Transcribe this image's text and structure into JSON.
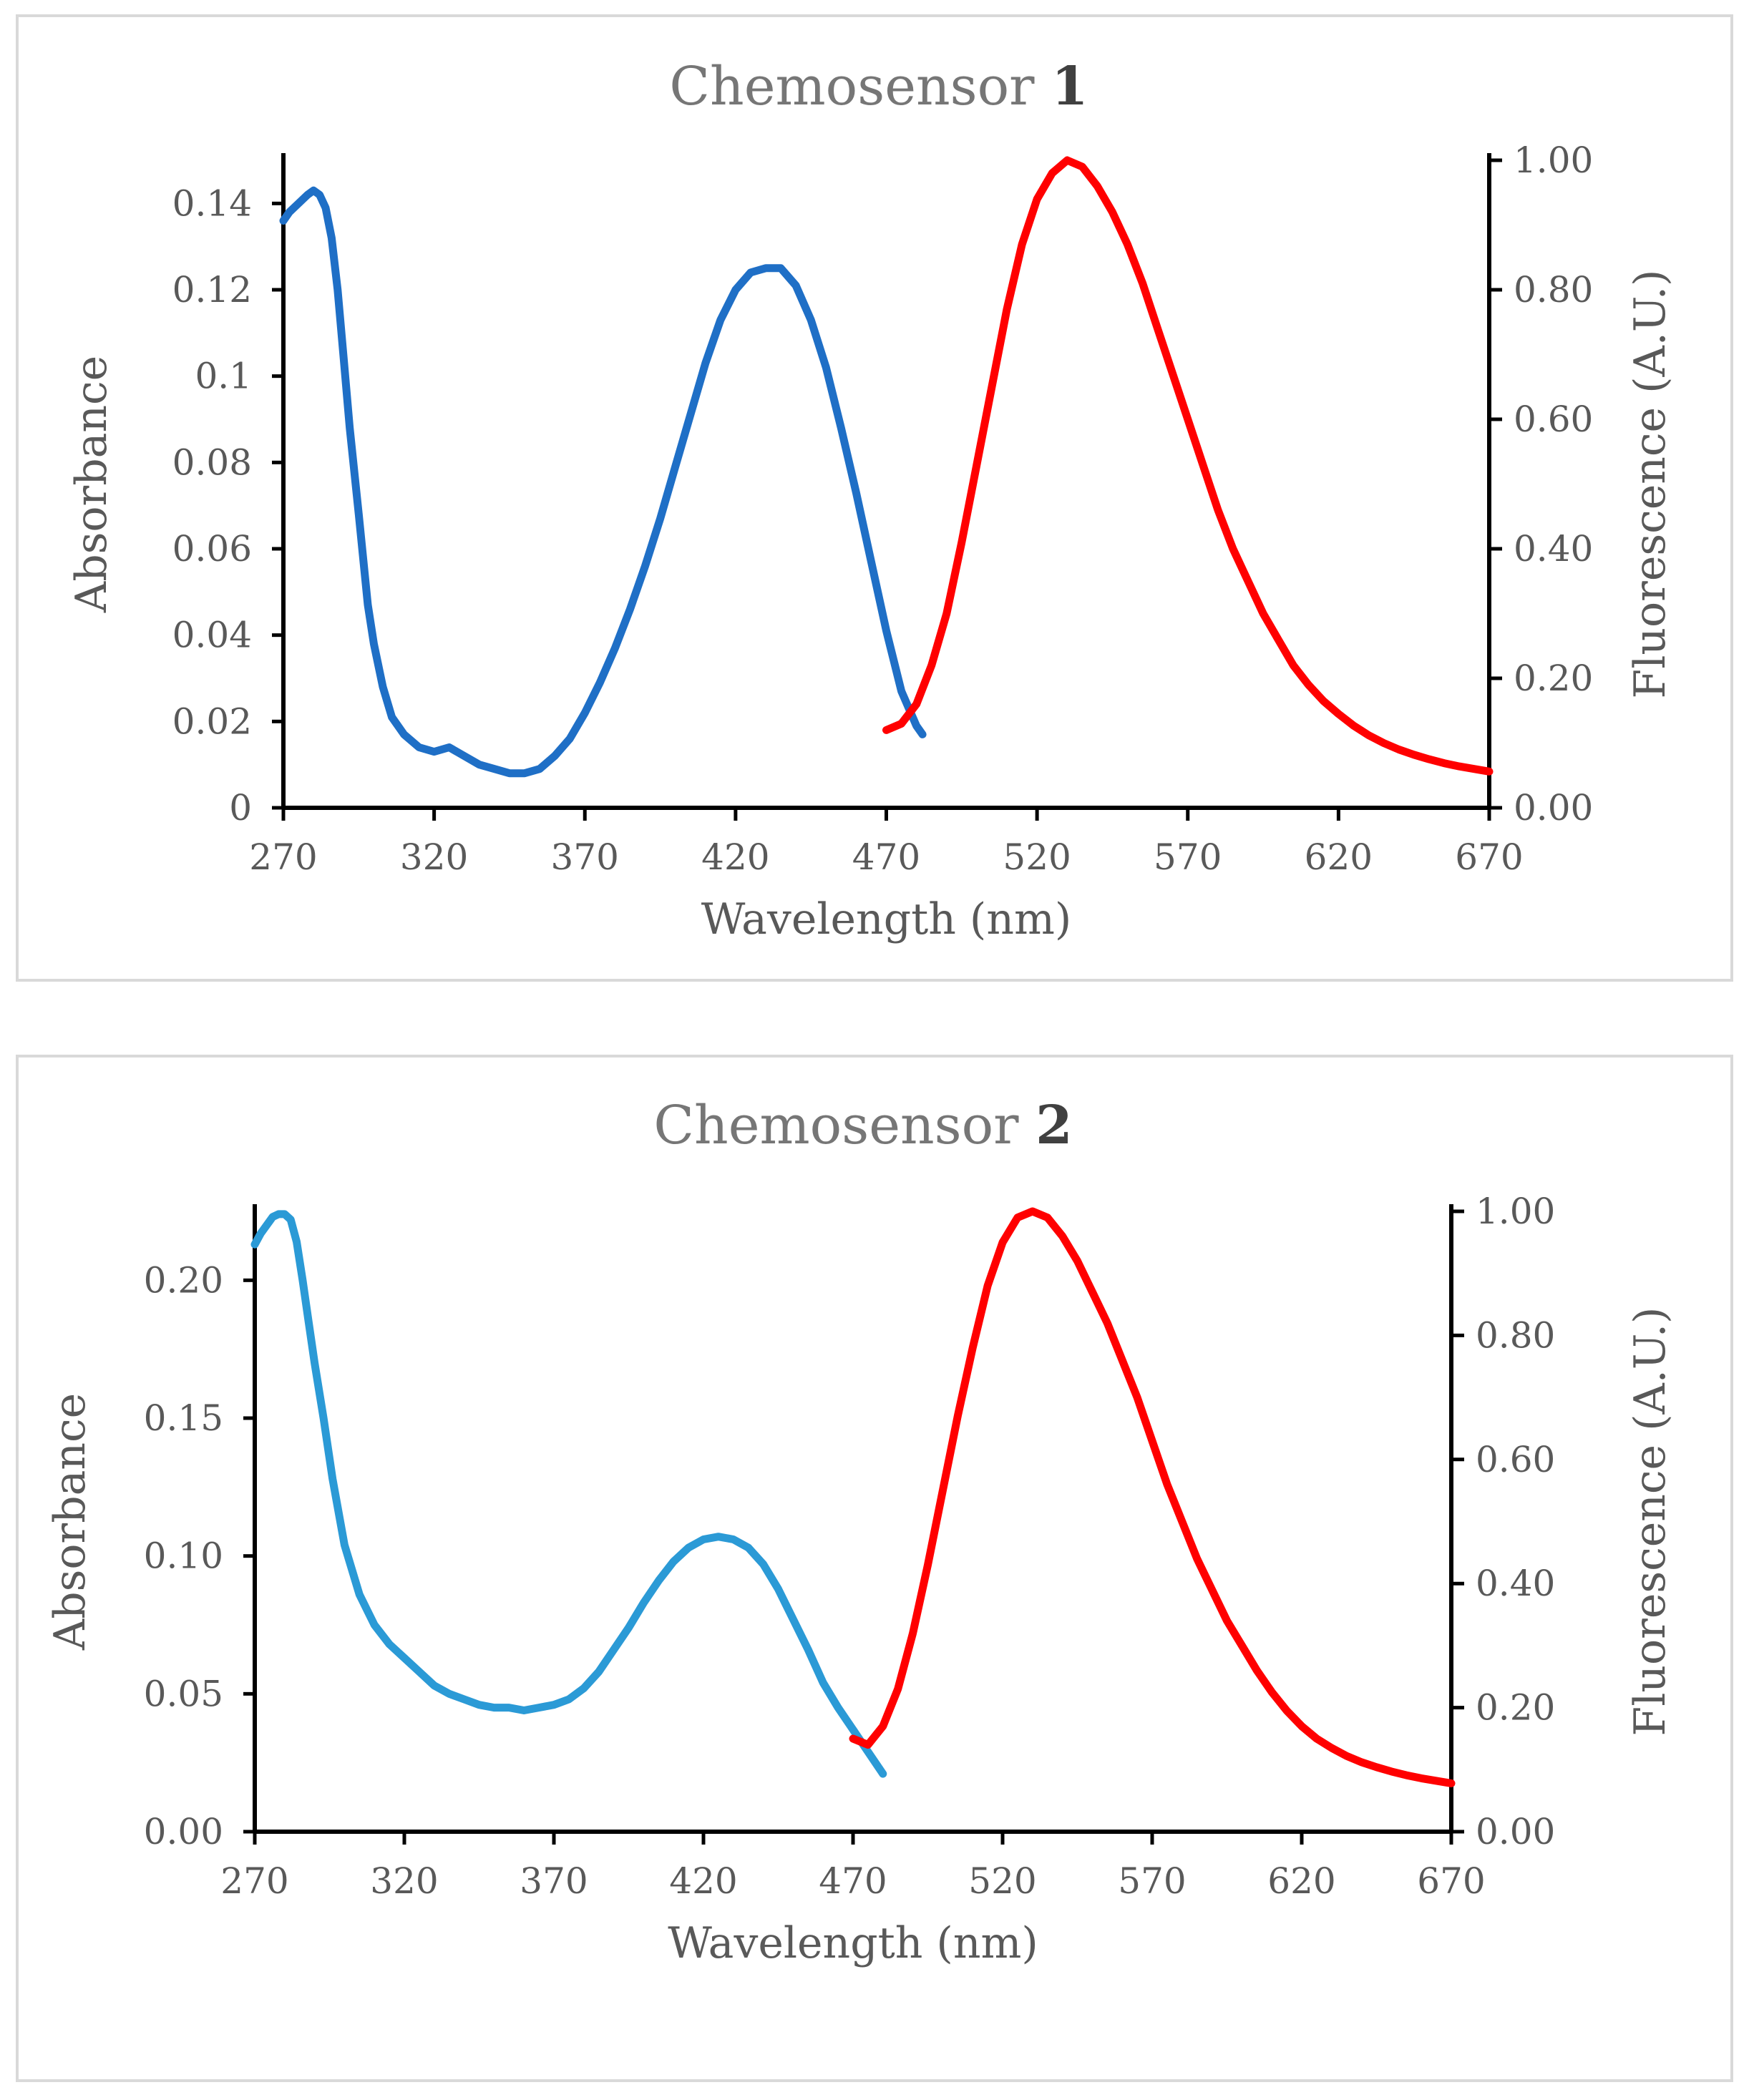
{
  "chart_data": [
    {
      "type": "line",
      "title": "Chemosensor",
      "title_number": "1",
      "xlabel": "Wavelength  (nm)",
      "ylabel": "Absorbance",
      "y2label": "Fluorescence  (A.U.)",
      "xlim": [
        270,
        670
      ],
      "ylim": [
        0,
        0.15
      ],
      "y2lim": [
        0,
        1.0
      ],
      "xticks": [
        "270",
        "320",
        "370",
        "420",
        "470",
        "520",
        "570",
        "620",
        "670"
      ],
      "yticks": [
        "0",
        "0.02",
        "0.04",
        "0.06",
        "0.08",
        "0.1",
        "0.12",
        "0.14"
      ],
      "y2ticks": [
        "0.00",
        "0.20",
        "0.40",
        "0.60",
        "0.80",
        "1.00"
      ],
      "grid": false,
      "series": [
        {
          "name": "Absorbance",
          "axis": "left",
          "color": "#1f6fc6",
          "x": [
            270,
            272,
            275,
            278,
            280,
            282,
            284,
            286,
            288,
            290,
            292,
            295,
            298,
            300,
            303,
            306,
            310,
            315,
            320,
            325,
            330,
            335,
            340,
            345,
            350,
            355,
            360,
            365,
            370,
            375,
            380,
            385,
            390,
            395,
            400,
            405,
            410,
            415,
            420,
            425,
            430,
            435,
            440,
            445,
            450,
            455,
            460,
            465,
            470,
            475,
            480,
            482
          ],
          "values": [
            0.136,
            0.138,
            0.14,
            0.142,
            0.143,
            0.142,
            0.139,
            0.132,
            0.12,
            0.104,
            0.088,
            0.068,
            0.047,
            0.038,
            0.028,
            0.021,
            0.017,
            0.014,
            0.013,
            0.014,
            0.012,
            0.01,
            0.009,
            0.008,
            0.008,
            0.009,
            0.012,
            0.016,
            0.022,
            0.029,
            0.037,
            0.046,
            0.056,
            0.067,
            0.079,
            0.091,
            0.103,
            0.113,
            0.12,
            0.124,
            0.125,
            0.125,
            0.121,
            0.113,
            0.102,
            0.088,
            0.073,
            0.057,
            0.041,
            0.027,
            0.019,
            0.017
          ]
        },
        {
          "name": "Fluorescence",
          "axis": "right",
          "color": "#ff0000",
          "x": [
            470,
            475,
            480,
            485,
            490,
            495,
            500,
            505,
            510,
            515,
            520,
            525,
            530,
            535,
            540,
            545,
            550,
            555,
            560,
            565,
            570,
            575,
            580,
            585,
            590,
            595,
            600,
            605,
            610,
            615,
            620,
            625,
            630,
            635,
            640,
            645,
            650,
            655,
            660,
            665,
            670
          ],
          "values": [
            0.12,
            0.13,
            0.16,
            0.22,
            0.3,
            0.41,
            0.53,
            0.65,
            0.77,
            0.87,
            0.94,
            0.98,
            1.0,
            0.99,
            0.96,
            0.92,
            0.87,
            0.81,
            0.74,
            0.67,
            0.6,
            0.53,
            0.46,
            0.4,
            0.35,
            0.3,
            0.26,
            0.22,
            0.19,
            0.165,
            0.145,
            0.127,
            0.112,
            0.1,
            0.09,
            0.082,
            0.075,
            0.069,
            0.064,
            0.06,
            0.056
          ]
        }
      ]
    },
    {
      "type": "line",
      "title": "Chemosensor",
      "title_number": "2",
      "xlabel": "Wavelength  (nm)",
      "ylabel": "Absorbance",
      "y2label": "Fluorescence  (A.U.)",
      "xlim": [
        270,
        670
      ],
      "ylim": [
        0,
        0.225
      ],
      "y2lim": [
        0,
        1.0
      ],
      "xticks": [
        "270",
        "320",
        "370",
        "420",
        "470",
        "520",
        "570",
        "620",
        "670"
      ],
      "yticks": [
        "0.00",
        "0.05",
        "0.10",
        "0.15",
        "0.20"
      ],
      "y2ticks": [
        "0.00",
        "0.20",
        "0.40",
        "0.60",
        "0.80",
        "1.00"
      ],
      "grid": false,
      "series": [
        {
          "name": "Absorbance",
          "axis": "left",
          "color": "#2b9ad6",
          "x": [
            270,
            272,
            274,
            276,
            278,
            280,
            282,
            284,
            286,
            288,
            290,
            293,
            296,
            300,
            305,
            310,
            315,
            320,
            325,
            330,
            335,
            340,
            345,
            350,
            355,
            360,
            365,
            370,
            375,
            380,
            385,
            390,
            395,
            400,
            405,
            410,
            415,
            420,
            425,
            430,
            435,
            440,
            445,
            450,
            455,
            460,
            465,
            470,
            475,
            480
          ],
          "values": [
            0.213,
            0.217,
            0.22,
            0.223,
            0.224,
            0.224,
            0.222,
            0.214,
            0.2,
            0.185,
            0.17,
            0.15,
            0.128,
            0.104,
            0.086,
            0.075,
            0.068,
            0.063,
            0.058,
            0.053,
            0.05,
            0.048,
            0.046,
            0.045,
            0.045,
            0.044,
            0.045,
            0.046,
            0.048,
            0.052,
            0.058,
            0.066,
            0.074,
            0.083,
            0.091,
            0.098,
            0.103,
            0.106,
            0.107,
            0.106,
            0.103,
            0.097,
            0.088,
            0.077,
            0.066,
            0.054,
            0.045,
            0.037,
            0.029,
            0.021
          ]
        },
        {
          "name": "Fluorescence",
          "axis": "right",
          "color": "#ff0000",
          "x": [
            470,
            475,
            480,
            485,
            490,
            495,
            500,
            505,
            510,
            515,
            520,
            525,
            530,
            535,
            540,
            545,
            550,
            555,
            560,
            565,
            570,
            575,
            580,
            585,
            590,
            595,
            600,
            605,
            610,
            615,
            620,
            625,
            630,
            635,
            640,
            645,
            650,
            655,
            660,
            665,
            670
          ],
          "values": [
            0.15,
            0.14,
            0.17,
            0.23,
            0.32,
            0.43,
            0.55,
            0.67,
            0.78,
            0.88,
            0.95,
            0.99,
            1.0,
            0.99,
            0.96,
            0.92,
            0.87,
            0.82,
            0.76,
            0.7,
            0.63,
            0.56,
            0.5,
            0.44,
            0.39,
            0.34,
            0.3,
            0.26,
            0.225,
            0.195,
            0.17,
            0.15,
            0.135,
            0.122,
            0.112,
            0.104,
            0.097,
            0.091,
            0.086,
            0.082,
            0.078
          ]
        }
      ]
    }
  ]
}
